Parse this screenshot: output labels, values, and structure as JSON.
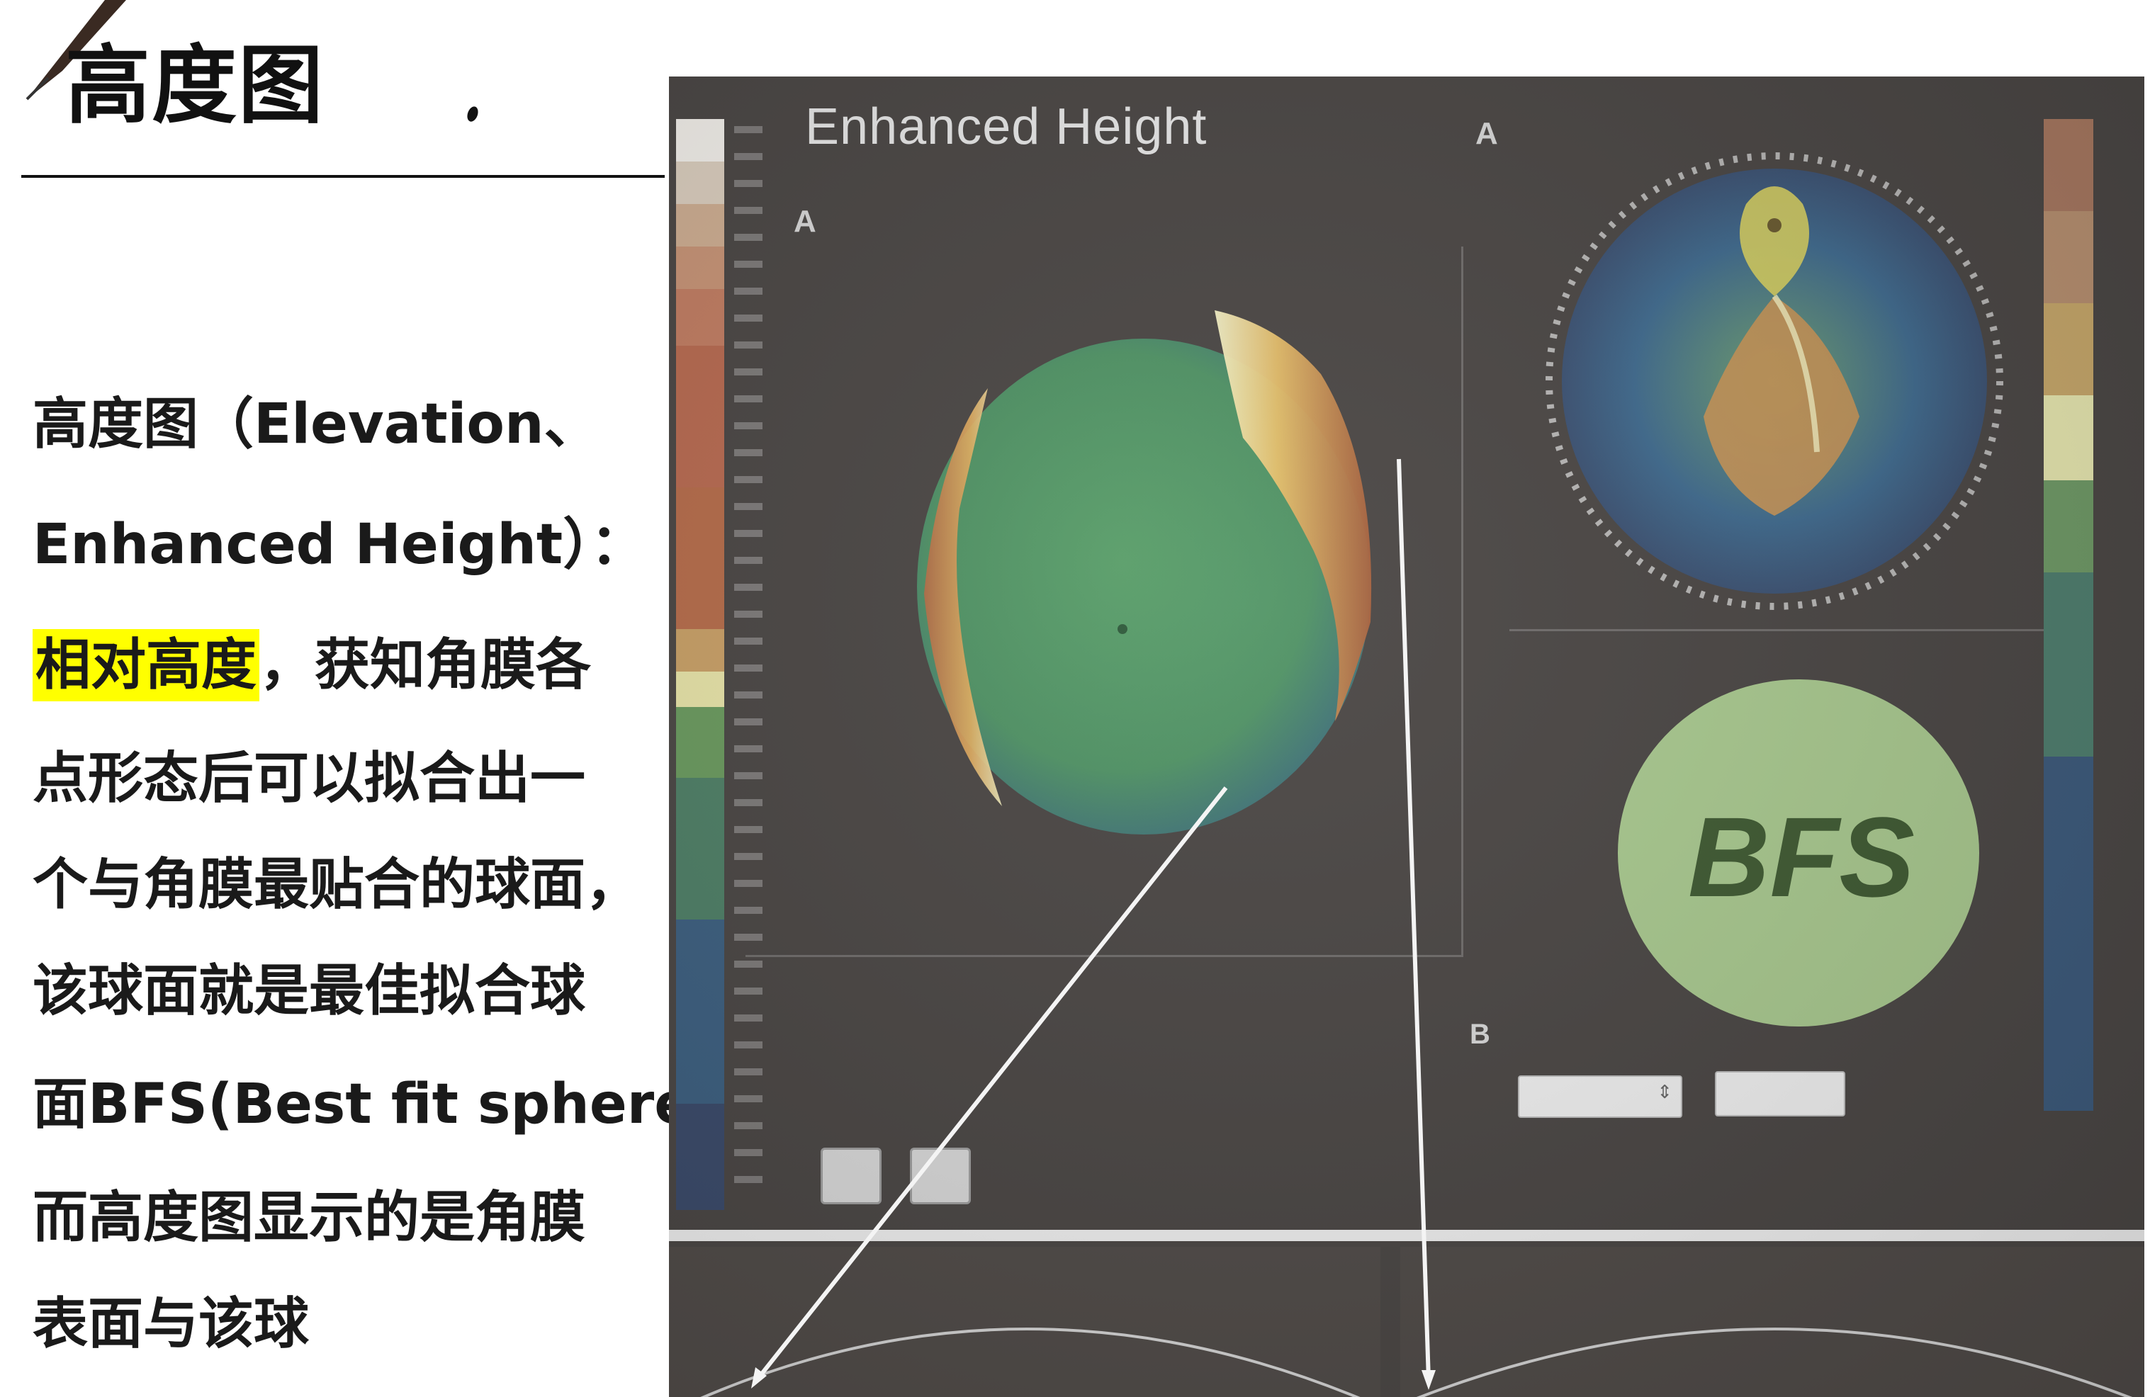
{
  "slide": {
    "title": "高度图"
  },
  "body": {
    "line1": "高度图（Elevation、",
    "line2": "Enhanced Height）：",
    "line3_highlight": "相对高度",
    "line3_rest": "，获知角膜各",
    "line4": "点形态后可以拟合出一",
    "line5": "个与角膜最贴合的球面，",
    "line6": "该球面就是最佳拟合球",
    "line7": "面BFS(Best fit sphere)。",
    "line8": "而高度图显示的是角膜",
    "line9": "表面与该球"
  },
  "device": {
    "panel_title": "Enhanced Height",
    "marker_a": "A",
    "marker_a_inset": "A",
    "marker_b": "B",
    "bfs_label": "BFS"
  },
  "colors": {
    "highlight": "#ffff00",
    "screen_bg": "#4a4644",
    "bfs_green": "#a9c98f",
    "map_green": "#5a9a62"
  }
}
